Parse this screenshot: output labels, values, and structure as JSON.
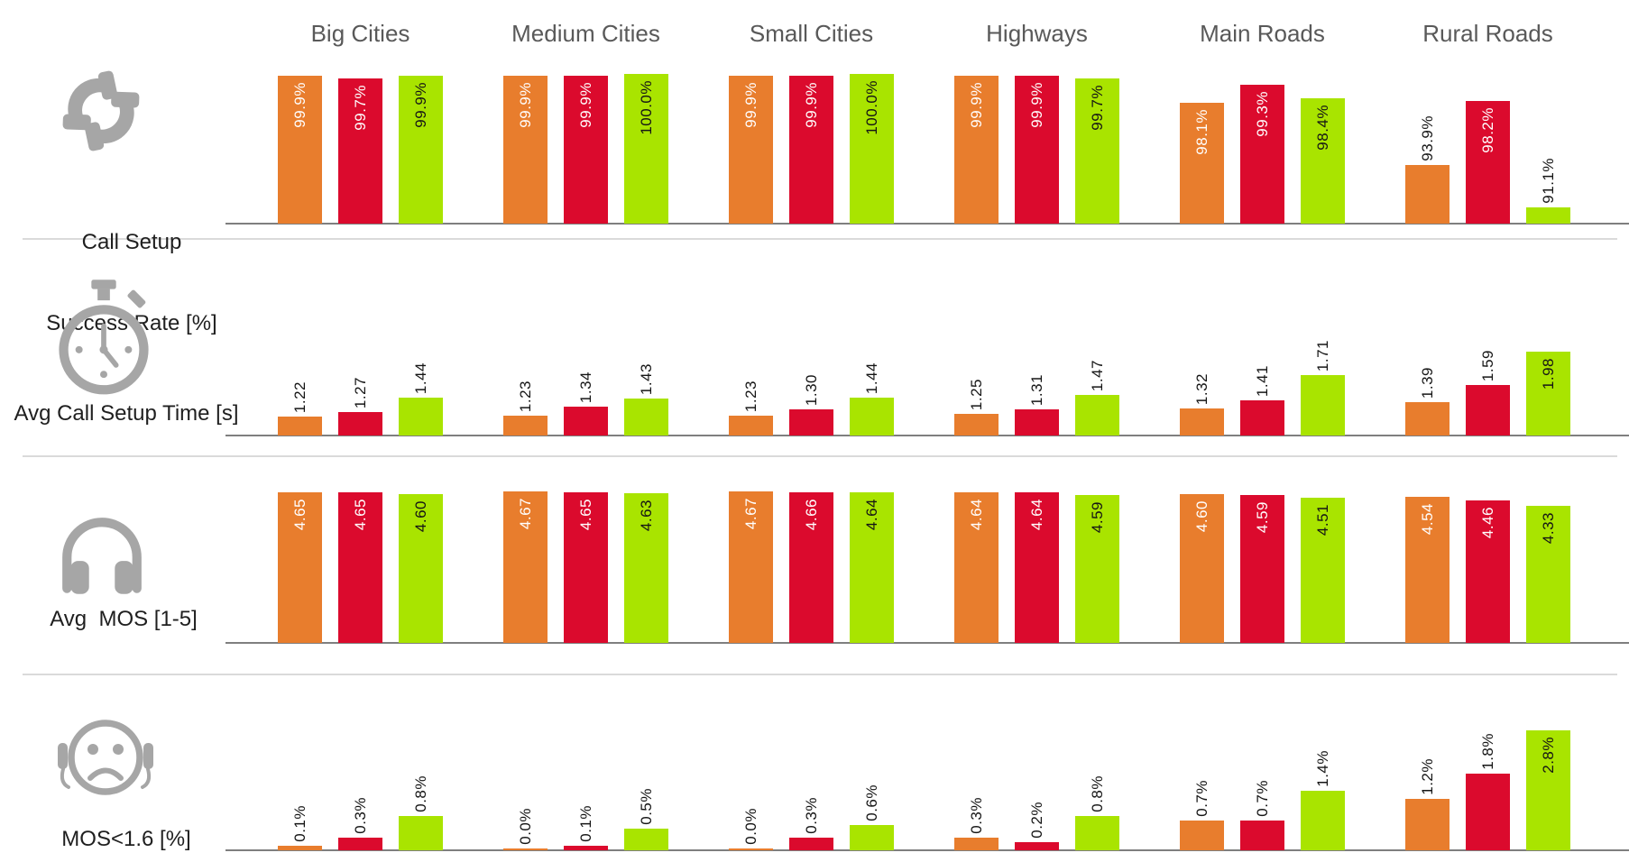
{
  "chart_data": {
    "type": "bar",
    "description": "Drive-test network benchmark: 4 KPI rows by 6 area-type groups, 3 operator series per group",
    "categories": [
      "Big Cities",
      "Medium Cities",
      "Small Cities",
      "Highways",
      "Main Roads",
      "Rural Roads"
    ],
    "series_names": [
      "operator-orange",
      "operator-red",
      "operator-green"
    ],
    "series_colors": [
      "#E87D2D",
      "#DB0A2D",
      "#A9E400"
    ],
    "legend": "none",
    "grid": "off",
    "rows": [
      {
        "id": "call-setup-success-rate",
        "label_lines": [
          "Call Setup",
          "Success Rate [%]"
        ],
        "icon": "phone-handsets-icon",
        "axis_min": 90,
        "axis_max": 100,
        "groups": [
          {
            "category": "Big Cities",
            "values": [
              99.9,
              99.7,
              99.9
            ],
            "labels": [
              "99.9%",
              "99.7%",
              "99.9%"
            ],
            "label_inside": [
              true,
              true,
              true
            ]
          },
          {
            "category": "Medium Cities",
            "values": [
              99.9,
              99.9,
              100.0
            ],
            "labels": [
              "99.9%",
              "99.9%",
              "100.0%"
            ],
            "label_inside": [
              true,
              true,
              true
            ]
          },
          {
            "category": "Small Cities",
            "values": [
              99.9,
              99.9,
              100.0
            ],
            "labels": [
              "99.9%",
              "99.9%",
              "100.0%"
            ],
            "label_inside": [
              true,
              true,
              true
            ]
          },
          {
            "category": "Highways",
            "values": [
              99.9,
              99.9,
              99.7
            ],
            "labels": [
              "99.9%",
              "99.9%",
              "99.7%"
            ],
            "label_inside": [
              true,
              true,
              true
            ]
          },
          {
            "category": "Main Roads",
            "values": [
              98.1,
              99.3,
              98.4
            ],
            "labels": [
              "98.1%",
              "99.3%",
              "98.4%"
            ],
            "label_inside": [
              true,
              true,
              true
            ]
          },
          {
            "category": "Rural Roads",
            "values": [
              93.9,
              98.2,
              91.1
            ],
            "labels": [
              "93.9%",
              "98.2%",
              "91.1%"
            ],
            "label_inside": [
              false,
              true,
              false
            ]
          }
        ]
      },
      {
        "id": "avg-call-setup-time",
        "label_lines": [
          "Avg Call Setup Time [s]"
        ],
        "icon": "stopwatch-icon",
        "axis_min": 1.0,
        "axis_max": 2.0,
        "groups": [
          {
            "category": "Big Cities",
            "values": [
              1.22,
              1.27,
              1.44
            ],
            "labels": [
              "1.22",
              "1.27",
              "1.44"
            ],
            "label_inside": [
              false,
              false,
              false
            ]
          },
          {
            "category": "Medium Cities",
            "values": [
              1.23,
              1.34,
              1.43
            ],
            "labels": [
              "1.23",
              "1.34",
              "1.43"
            ],
            "label_inside": [
              false,
              false,
              false
            ]
          },
          {
            "category": "Small Cities",
            "values": [
              1.23,
              1.3,
              1.44
            ],
            "labels": [
              "1.23",
              "1.30",
              "1.44"
            ],
            "label_inside": [
              false,
              false,
              false
            ]
          },
          {
            "category": "Highways",
            "values": [
              1.25,
              1.31,
              1.47
            ],
            "labels": [
              "1.25",
              "1.31",
              "1.47"
            ],
            "label_inside": [
              false,
              false,
              false
            ]
          },
          {
            "category": "Main Roads",
            "values": [
              1.32,
              1.41,
              1.71
            ],
            "labels": [
              "1.32",
              "1.41",
              "1.71"
            ],
            "label_inside": [
              false,
              false,
              false
            ]
          },
          {
            "category": "Rural Roads",
            "values": [
              1.39,
              1.59,
              1.98
            ],
            "labels": [
              "1.39",
              "1.59",
              "1.98"
            ],
            "label_inside": [
              false,
              false,
              true
            ]
          }
        ]
      },
      {
        "id": "avg-mos",
        "label_lines": [
          "Avg  MOS [1-5]"
        ],
        "icon": "headphones-icon",
        "axis_min": 1.0,
        "axis_max": 5.0,
        "groups": [
          {
            "category": "Big Cities",
            "values": [
              4.65,
              4.65,
              4.6
            ],
            "labels": [
              "4.65",
              "4.65",
              "4.60"
            ],
            "label_inside": [
              true,
              true,
              true
            ]
          },
          {
            "category": "Medium Cities",
            "values": [
              4.67,
              4.65,
              4.63
            ],
            "labels": [
              "4.67",
              "4.65",
              "4.63"
            ],
            "label_inside": [
              true,
              true,
              true
            ]
          },
          {
            "category": "Small Cities",
            "values": [
              4.67,
              4.66,
              4.64
            ],
            "labels": [
              "4.67",
              "4.66",
              "4.64"
            ],
            "label_inside": [
              true,
              true,
              true
            ]
          },
          {
            "category": "Highways",
            "values": [
              4.64,
              4.64,
              4.59
            ],
            "labels": [
              "4.64",
              "4.64",
              "4.59"
            ],
            "label_inside": [
              true,
              true,
              true
            ]
          },
          {
            "category": "Main Roads",
            "values": [
              4.6,
              4.59,
              4.51
            ],
            "labels": [
              "4.60",
              "4.59",
              "4.51"
            ],
            "label_inside": [
              true,
              true,
              true
            ]
          },
          {
            "category": "Rural Roads",
            "values": [
              4.54,
              4.46,
              4.33
            ],
            "labels": [
              "4.54",
              "4.46",
              "4.33"
            ],
            "label_inside": [
              true,
              true,
              true
            ]
          }
        ]
      },
      {
        "id": "mos-below-1-6",
        "label_lines": [
          "MOS<1.6 [%]"
        ],
        "icon": "sad-face-headset-icon",
        "axis_min": 0.0,
        "axis_max": 3.0,
        "groups": [
          {
            "category": "Big Cities",
            "values": [
              0.1,
              0.3,
              0.8
            ],
            "labels": [
              "0.1%",
              "0.3%",
              "0.8%"
            ],
            "label_inside": [
              false,
              false,
              false
            ]
          },
          {
            "category": "Medium Cities",
            "values": [
              0.0,
              0.1,
              0.5
            ],
            "labels": [
              "0.0%",
              "0.1%",
              "0.5%"
            ],
            "label_inside": [
              false,
              false,
              false
            ]
          },
          {
            "category": "Small Cities",
            "values": [
              0.0,
              0.3,
              0.6
            ],
            "labels": [
              "0.0%",
              "0.3%",
              "0.6%"
            ],
            "label_inside": [
              false,
              false,
              false
            ]
          },
          {
            "category": "Highways",
            "values": [
              0.3,
              0.2,
              0.8
            ],
            "labels": [
              "0.3%",
              "0.2%",
              "0.8%"
            ],
            "label_inside": [
              false,
              false,
              false
            ]
          },
          {
            "category": "Main Roads",
            "values": [
              0.7,
              0.7,
              1.4
            ],
            "labels": [
              "0.7%",
              "0.7%",
              "1.4%"
            ],
            "label_inside": [
              false,
              false,
              false
            ]
          },
          {
            "category": "Rural Roads",
            "values": [
              1.2,
              1.8,
              2.8
            ],
            "labels": [
              "1.2%",
              "1.8%",
              "2.8%"
            ],
            "label_inside": [
              false,
              false,
              true
            ]
          }
        ]
      }
    ],
    "colors": {
      "header_text": "#595959",
      "row_label_text": "#1f1f1f",
      "icon_gray": "#A6A6A6",
      "baseline_gray": "#7f7f7f",
      "separator_gray": "#dadada",
      "label_on_dark_bar": "#FFFFFF",
      "label_on_green_bar": "#151515",
      "label_outside": "#151515"
    }
  }
}
